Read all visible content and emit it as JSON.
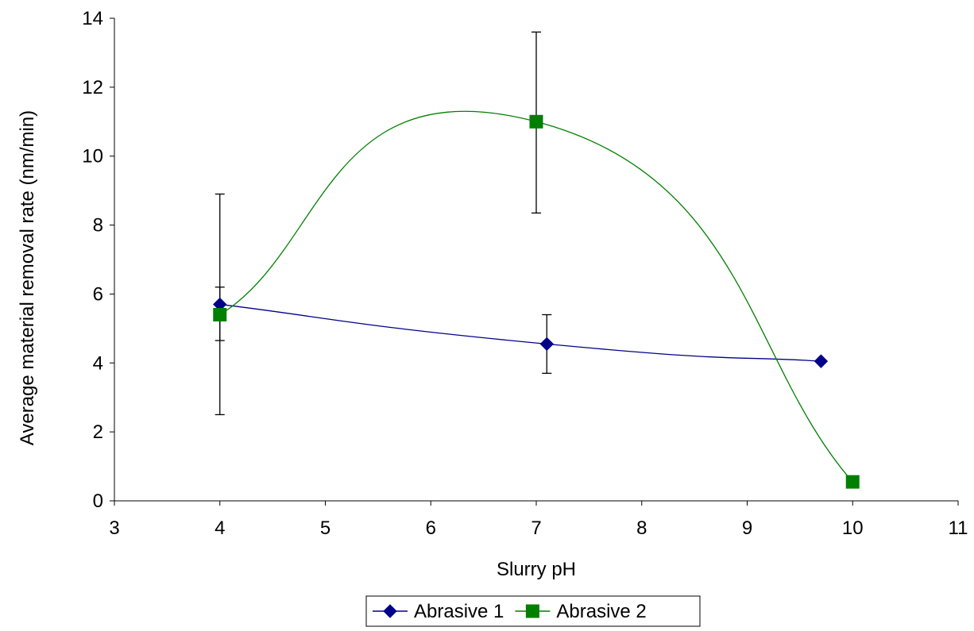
{
  "chart_data": {
    "type": "scatter",
    "title": "",
    "xlabel": "Slurry pH",
    "ylabel": "Average material removal rate (nm/min)",
    "xlim": [
      3,
      11
    ],
    "ylim": [
      0,
      14
    ],
    "xticks": [
      3,
      4,
      5,
      6,
      7,
      8,
      9,
      10,
      11
    ],
    "yticks": [
      0,
      2,
      4,
      6,
      8,
      10,
      12,
      14
    ],
    "grid": false,
    "legend_position": "bottom",
    "series": [
      {
        "name": "Abrasive 1",
        "color": "#00008b",
        "marker": "diamond",
        "line": "smooth",
        "points": [
          {
            "x": 4.0,
            "y": 5.7,
            "err_low": 4.65,
            "err_high": 6.2
          },
          {
            "x": 7.1,
            "y": 4.55,
            "err_low": 3.7,
            "err_high": 5.4
          },
          {
            "x": 9.7,
            "y": 4.05
          }
        ]
      },
      {
        "name": "Abrasive 2",
        "color": "#008000",
        "marker": "square",
        "line": "smooth",
        "points": [
          {
            "x": 4.0,
            "y": 5.4,
            "err_low": 2.5,
            "err_high": 8.9
          },
          {
            "x": 7.0,
            "y": 11.0,
            "err_low": 8.35,
            "err_high": 13.6
          },
          {
            "x": 10.0,
            "y": 0.55
          }
        ]
      }
    ]
  }
}
